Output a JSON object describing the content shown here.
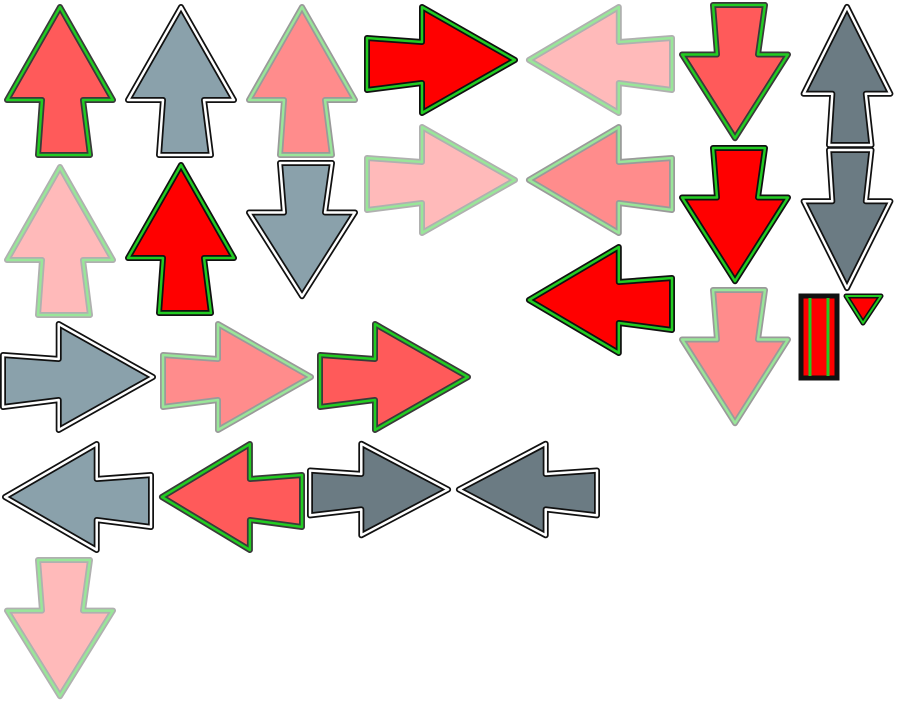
{
  "sprite_sheet": {
    "palette": {
      "red_bright": "#ff0000",
      "red_coral": "#ff5a5a",
      "red_pink": "#ff8c8c",
      "red_faint": "#ffbaba",
      "slate_light": "#8aa1ab",
      "slate_dark": "#6b7b83",
      "outline_dark": "#3a3a3a",
      "outline_light": "#9a9a9a",
      "rim_green": "#22cc22",
      "rim_green_pale": "#99e699",
      "rim_white": "#ffffff"
    },
    "arrows": [
      {
        "name": "arrow-up-coral-icon",
        "direction": "up",
        "fill": "#ff5a5a",
        "outline": "#3a3a3a",
        "rim": "#22cc22"
      },
      {
        "name": "arrow-up-slate-icon",
        "direction": "up",
        "fill": "#8aa1ab",
        "outline": "#111111",
        "rim": "#ffffff"
      },
      {
        "name": "arrow-up-pink-icon",
        "direction": "up",
        "fill": "#ff8c8c",
        "outline": "#9a9a9a",
        "rim": "#99e699"
      },
      {
        "name": "arrow-right-red-icon",
        "direction": "right",
        "fill": "#ff0000",
        "outline": "#111111",
        "rim": "#22cc22"
      },
      {
        "name": "arrow-left-faint-icon",
        "direction": "left",
        "fill": "#ffbaba",
        "outline": "#b0b0b0",
        "rim": "#99e699"
      },
      {
        "name": "arrow-down-coral-icon",
        "direction": "down",
        "fill": "#ff5a5a",
        "outline": "#3a3a3a",
        "rim": "#22cc22"
      },
      {
        "name": "arrow-up-slate-dark-icon",
        "direction": "up",
        "fill": "#6b7b83",
        "outline": "#111111",
        "rim": "#ffffff"
      },
      {
        "name": "arrow-up-faint-icon",
        "direction": "up",
        "fill": "#ffbaba",
        "outline": "#b0b0b0",
        "rim": "#99e699"
      },
      {
        "name": "arrow-up-red-icon",
        "direction": "up",
        "fill": "#ff0000",
        "outline": "#111111",
        "rim": "#22cc22"
      },
      {
        "name": "arrow-down-slate-icon",
        "direction": "down",
        "fill": "#8aa1ab",
        "outline": "#111111",
        "rim": "#ffffff"
      },
      {
        "name": "arrow-right-faint-icon",
        "direction": "right",
        "fill": "#ffbaba",
        "outline": "#b0b0b0",
        "rim": "#99e699"
      },
      {
        "name": "arrow-left-pink-icon",
        "direction": "left",
        "fill": "#ff8c8c",
        "outline": "#9a9a9a",
        "rim": "#99e699"
      },
      {
        "name": "arrow-down-red-icon",
        "direction": "down",
        "fill": "#ff0000",
        "outline": "#111111",
        "rim": "#22cc22"
      },
      {
        "name": "arrow-down-slate-dark-icon",
        "direction": "down",
        "fill": "#6b7b83",
        "outline": "#111111",
        "rim": "#ffffff"
      },
      {
        "name": "arrow-left-red-icon",
        "direction": "left",
        "fill": "#ff0000",
        "outline": "#111111",
        "rim": "#22cc22"
      },
      {
        "name": "arrow-down-pink-icon",
        "direction": "down",
        "fill": "#ff8c8c",
        "outline": "#9a9a9a",
        "rim": "#99e699"
      },
      {
        "name": "arrow-right-slate-icon",
        "direction": "right",
        "fill": "#8aa1ab",
        "outline": "#111111",
        "rim": "#ffffff"
      },
      {
        "name": "arrow-right-pink-icon",
        "direction": "right",
        "fill": "#ff8c8c",
        "outline": "#9a9a9a",
        "rim": "#99e699"
      },
      {
        "name": "arrow-right-coral-icon",
        "direction": "right",
        "fill": "#ff5a5a",
        "outline": "#3a3a3a",
        "rim": "#22cc22"
      },
      {
        "name": "arrow-left-slate-icon",
        "direction": "left",
        "fill": "#8aa1ab",
        "outline": "#111111",
        "rim": "#ffffff"
      },
      {
        "name": "arrow-left-coral-icon",
        "direction": "left",
        "fill": "#ff5a5a",
        "outline": "#3a3a3a",
        "rim": "#22cc22"
      },
      {
        "name": "arrow-right-slate-dark-icon",
        "direction": "right",
        "fill": "#6b7b83",
        "outline": "#111111",
        "rim": "#ffffff"
      },
      {
        "name": "arrow-left-slate-dark-icon",
        "direction": "left",
        "fill": "#6b7b83",
        "outline": "#111111",
        "rim": "#ffffff"
      },
      {
        "name": "arrow-down-faint-icon",
        "direction": "down",
        "fill": "#ffbaba",
        "outline": "#b0b0b0",
        "rim": "#99e699"
      }
    ],
    "fragments": [
      {
        "name": "arrow-stem-fragment-icon",
        "kind": "stem",
        "fill": "#ff0000",
        "outline": "#111111",
        "rim": "#22cc22"
      },
      {
        "name": "arrow-tip-fragment-icon",
        "kind": "tip",
        "fill": "#ff0000",
        "outline": "#111111",
        "rim": "#22cc22"
      }
    ]
  }
}
